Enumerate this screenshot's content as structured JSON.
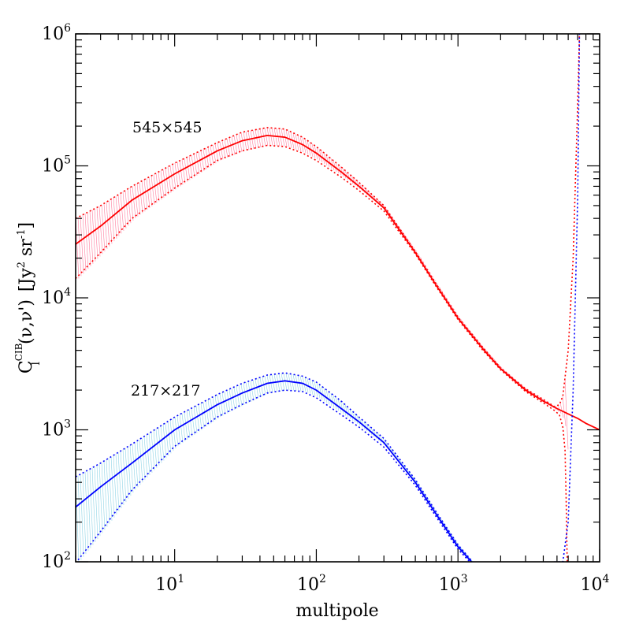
{
  "chart_data": {
    "type": "line",
    "xscale": "log",
    "yscale": "log",
    "xlim": [
      2,
      10000
    ],
    "ylim": [
      100,
      1000000
    ],
    "xlabel": "multipole",
    "ylabel": {
      "prefix": "C",
      "sup": "CIB",
      "sub": "l",
      "args": "(ν,ν')",
      "units_open": "[Jy",
      "units_sup1": "2",
      "units_mid": " sr",
      "units_sup2": "-1",
      "units_close": "]"
    },
    "x_ticks": [
      {
        "value": 10,
        "base": "10",
        "exp": "1"
      },
      {
        "value": 100,
        "base": "10",
        "exp": "2"
      },
      {
        "value": 1000,
        "base": "10",
        "exp": "3"
      },
      {
        "value": 10000,
        "base": "10",
        "exp": "4"
      }
    ],
    "y_ticks": [
      {
        "value": 100,
        "base": "10",
        "exp": "2"
      },
      {
        "value": 1000,
        "base": "10",
        "exp": "3"
      },
      {
        "value": 10000,
        "base": "10",
        "exp": "4"
      },
      {
        "value": 100000,
        "base": "10",
        "exp": "5"
      },
      {
        "value": 1000000,
        "base": "10",
        "exp": "6"
      }
    ],
    "series": [
      {
        "name": "545×545",
        "color": "#ff0000",
        "hatch_color": "#ff7fa0",
        "central": [
          [
            2,
            25500
          ],
          [
            3,
            35000
          ],
          [
            5,
            55000
          ],
          [
            10,
            87000
          ],
          [
            20,
            130000
          ],
          [
            30,
            155000
          ],
          [
            45,
            170000
          ],
          [
            60,
            165000
          ],
          [
            80,
            145000
          ],
          [
            100,
            125000
          ],
          [
            150,
            90000
          ],
          [
            200,
            70000
          ],
          [
            300,
            48000
          ],
          [
            500,
            22000
          ],
          [
            700,
            12500
          ],
          [
            1000,
            7000
          ],
          [
            1500,
            4100
          ],
          [
            2000,
            2900
          ],
          [
            3000,
            2000
          ],
          [
            4000,
            1650
          ],
          [
            5000,
            1450
          ],
          [
            6000,
            1320
          ],
          [
            7000,
            1220
          ],
          [
            8000,
            1120
          ],
          [
            10000,
            1000
          ]
        ],
        "upper": [
          [
            2,
            40000
          ],
          [
            3,
            50000
          ],
          [
            5,
            70000
          ],
          [
            10,
            105000
          ],
          [
            20,
            150000
          ],
          [
            30,
            180000
          ],
          [
            45,
            195000
          ],
          [
            60,
            190000
          ],
          [
            80,
            165000
          ],
          [
            100,
            140000
          ],
          [
            150,
            98000
          ],
          [
            200,
            75000
          ],
          [
            300,
            50000
          ],
          [
            500,
            22500
          ],
          [
            700,
            12800
          ],
          [
            1000,
            7150
          ],
          [
            1500,
            4200
          ],
          [
            2000,
            2950
          ],
          [
            3000,
            2050
          ],
          [
            4000,
            1700
          ],
          [
            4800,
            1500
          ],
          [
            5200,
            1550
          ],
          [
            5500,
            1800
          ],
          [
            6000,
            4000
          ],
          [
            6500,
            20000
          ],
          [
            7000,
            300000
          ],
          [
            7200,
            1000000
          ]
        ],
        "lower": [
          [
            2,
            14000
          ],
          [
            3,
            22000
          ],
          [
            5,
            40000
          ],
          [
            10,
            68000
          ],
          [
            20,
            110000
          ],
          [
            30,
            130000
          ],
          [
            45,
            143000
          ],
          [
            60,
            140000
          ],
          [
            80,
            125000
          ],
          [
            100,
            110000
          ],
          [
            150,
            82000
          ],
          [
            200,
            65000
          ],
          [
            300,
            45500
          ],
          [
            500,
            21500
          ],
          [
            700,
            12200
          ],
          [
            1000,
            6850
          ],
          [
            1500,
            4000
          ],
          [
            2000,
            2850
          ],
          [
            3000,
            1950
          ],
          [
            4000,
            1600
          ],
          [
            4800,
            1400
          ],
          [
            5200,
            1300
          ],
          [
            5500,
            1050
          ],
          [
            5700,
            700
          ],
          [
            5800,
            300
          ],
          [
            5900,
            100
          ]
        ]
      },
      {
        "name": "217×217",
        "color": "#0000ff",
        "hatch_color": "#8fd4e6",
        "central": [
          [
            2,
            260
          ],
          [
            3,
            370
          ],
          [
            5,
            560
          ],
          [
            10,
            1000
          ],
          [
            20,
            1550
          ],
          [
            30,
            1900
          ],
          [
            45,
            2250
          ],
          [
            60,
            2350
          ],
          [
            80,
            2250
          ],
          [
            100,
            2000
          ],
          [
            150,
            1450
          ],
          [
            200,
            1150
          ],
          [
            300,
            800
          ],
          [
            500,
            400
          ],
          [
            700,
            230
          ],
          [
            1000,
            130
          ],
          [
            1300,
            95
          ]
        ],
        "upper": [
          [
            2,
            440
          ],
          [
            3,
            560
          ],
          [
            5,
            780
          ],
          [
            10,
            1250
          ],
          [
            20,
            1850
          ],
          [
            30,
            2250
          ],
          [
            45,
            2600
          ],
          [
            60,
            2700
          ],
          [
            80,
            2550
          ],
          [
            100,
            2300
          ],
          [
            150,
            1650
          ],
          [
            200,
            1250
          ],
          [
            300,
            860
          ],
          [
            500,
            420
          ],
          [
            700,
            240
          ],
          [
            1000,
            135
          ],
          [
            1300,
            97
          ],
          [
            5500,
            100
          ],
          [
            6000,
            200
          ],
          [
            6500,
            2000
          ],
          [
            7000,
            60000
          ],
          [
            7200,
            1000000
          ]
        ],
        "lower": [
          [
            2,
            98
          ],
          [
            3,
            170
          ],
          [
            5,
            350
          ],
          [
            10,
            750
          ],
          [
            20,
            1250
          ],
          [
            30,
            1560
          ],
          [
            45,
            1900
          ],
          [
            60,
            2000
          ],
          [
            80,
            1950
          ],
          [
            100,
            1750
          ],
          [
            150,
            1300
          ],
          [
            200,
            1050
          ],
          [
            300,
            740
          ],
          [
            500,
            380
          ],
          [
            700,
            220
          ],
          [
            1000,
            125
          ],
          [
            1300,
            92
          ]
        ]
      }
    ]
  }
}
